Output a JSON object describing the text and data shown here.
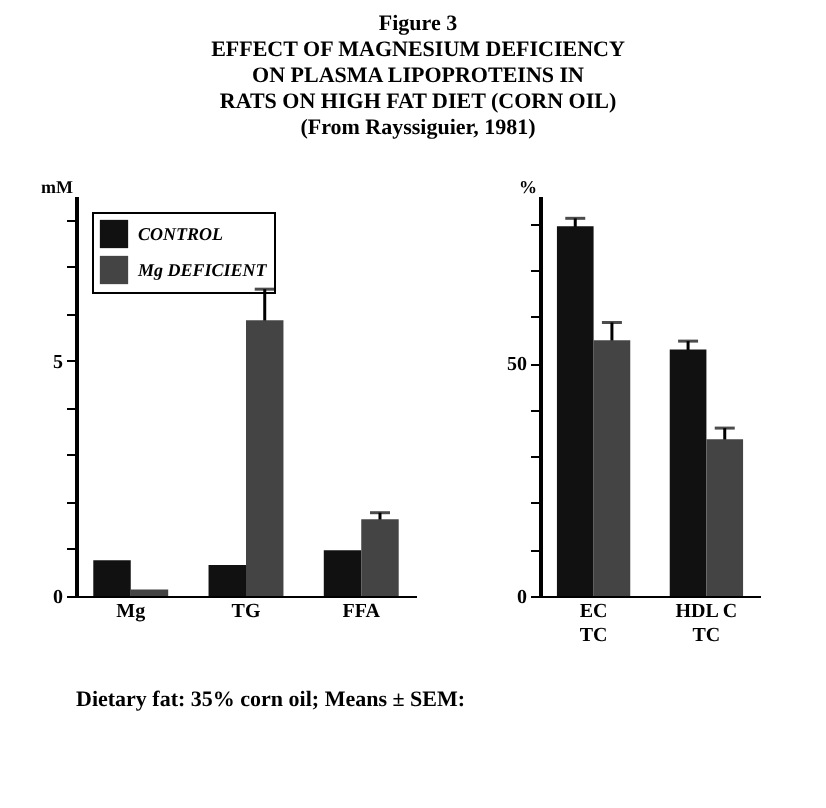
{
  "chart_data": [
    {
      "type": "bar",
      "title": "Figure 3\nEFFECT OF MAGNESIUM DEFICIENCY\nON PLASMA LIPOPROTEINS IN\nRATS ON HIGH FAT DIET (CORN OIL)\n(From Rayssiguier, 1981)",
      "ylabel": "mM",
      "annotations": [
        "Dietary fat: 35% corn oil; Means ± SEM:"
      ],
      "categories": [
        "Mg",
        "TG",
        "FFA"
      ],
      "series": [
        {
          "name": "CONTROL",
          "color": "#111111",
          "values": [
            0.76,
            0.66,
            0.97
          ],
          "errors": [
            null,
            null,
            null
          ]
        },
        {
          "name": "Mg DEFICIENT",
          "color": "#444444",
          "values": [
            0.14,
            5.86,
            1.63
          ],
          "errors": [
            null,
            0.66,
            0.14
          ]
        }
      ],
      "ylim": [
        0,
        8.5
      ],
      "yticks": [
        0,
        {
          "value": 1,
          "label": null
        },
        {
          "value": 2,
          "label": null
        },
        {
          "value": 3,
          "label": null
        },
        {
          "value": 4,
          "label": null
        },
        5,
        {
          "value": 6,
          "label": null
        },
        {
          "value": 7,
          "label": null
        },
        {
          "value": 8,
          "label": null
        }
      ],
      "legend": "top left",
      "grid": false
    },
    {
      "type": "bar",
      "ylabel": "%",
      "categories": [
        "EC\nTC",
        "HDL C\nTC"
      ],
      "series": [
        {
          "color": "#111111",
          "values": [
            79.5,
            53.0
          ],
          "errors": [
            1.7,
            1.8
          ]
        },
        {
          "color": "#444444",
          "values": [
            55.0,
            33.7
          ],
          "errors": [
            3.8,
            2.4
          ]
        }
      ],
      "ylim": [
        0,
        86
      ],
      "yticks": [
        0,
        {
          "value": 10,
          "label": null
        },
        {
          "value": 20,
          "label": null
        },
        {
          "value": 30,
          "label": null
        },
        {
          "value": 40,
          "label": null
        },
        50,
        {
          "value": 60,
          "label": null
        },
        {
          "value": 70,
          "label": null
        },
        {
          "value": 80,
          "label": null
        }
      ],
      "grid": false
    }
  ]
}
